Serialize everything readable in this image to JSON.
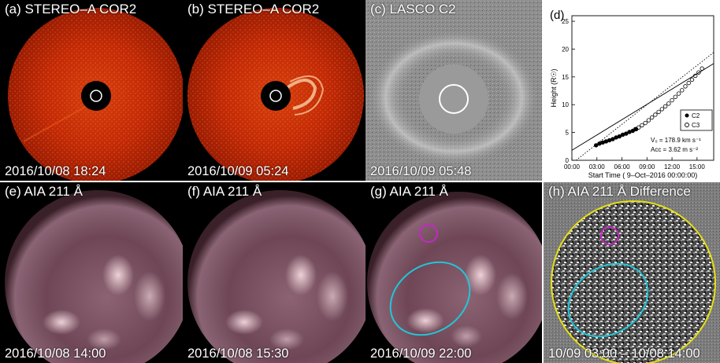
{
  "panels": {
    "a": {
      "label": "(a) STEREO–A COR2",
      "timestamp": "2016/10/08 18:24"
    },
    "b": {
      "label": "(b) STEREO–A COR2",
      "timestamp": "2016/10/09 05:24"
    },
    "c": {
      "label": "(c) LASCO C2",
      "timestamp": "2016/10/09 05:48"
    },
    "e": {
      "label": "(e) AIA 211 Å",
      "timestamp": "2016/10/08 14:00"
    },
    "f": {
      "label": "(f) AIA 211 Å",
      "timestamp": "2016/10/08 15:30"
    },
    "g": {
      "label": "(g) AIA 211 Å",
      "timestamp": "2016/10/09 22:00"
    },
    "h": {
      "label": "(h) AIA 211 Å Difference",
      "timestamp": "10/09 03:00 – 10/08 14:00"
    }
  },
  "colors": {
    "cor2_red": "#c42a06",
    "lasco_gray": "#8d8d8d",
    "aia_purple": "#7a5260",
    "magenta_circle": "#c428c4",
    "cyan_ellipse": "#22c6d6",
    "yellow_limb": "#e6e014"
  },
  "chart_data": {
    "type": "scatter",
    "panel_label": "(d)",
    "xlabel": "Start Time ( 9–Oct–2016 00:00:00)",
    "ylabel": "Height (R☉)",
    "xticks": [
      "00:00",
      "03:00",
      "06:00",
      "09:00",
      "12:00",
      "15:00"
    ],
    "xtick_values": [
      0,
      3,
      6,
      9,
      12,
      15
    ],
    "yticks": [
      "0",
      "5",
      "10",
      "15",
      "20",
      "25"
    ],
    "ytick_values": [
      0,
      5,
      10,
      15,
      20,
      25
    ],
    "xlim": [
      0,
      17
    ],
    "ylim": [
      0,
      26
    ],
    "legend": {
      "position": "right-middle",
      "entries": [
        "C2",
        "C3"
      ]
    },
    "annotation_v0": "V₀ =  178.9 km s⁻¹",
    "annotation_acc": "Acc =   3.62 m s⁻²",
    "series": [
      {
        "name": "C2",
        "marker": "filled-circle",
        "x": [
          2.9,
          3.3,
          3.7,
          4.1,
          4.5,
          4.9,
          5.3,
          5.7,
          6.1,
          6.5,
          6.9,
          7.3,
          7.7
        ],
        "y": [
          2.7,
          3.0,
          3.2,
          3.4,
          3.6,
          3.8,
          4.1,
          4.3,
          4.6,
          4.8,
          5.1,
          5.3,
          5.6
        ]
      },
      {
        "name": "C3",
        "marker": "open-circle",
        "x": [
          7.6,
          8.0,
          8.4,
          8.8,
          9.2,
          9.6,
          10.0,
          10.4,
          10.8,
          11.2,
          11.6,
          12.0,
          12.4,
          12.8,
          13.2,
          13.6,
          14.0,
          14.4,
          14.8,
          15.2,
          15.6
        ],
        "y": [
          5.6,
          5.9,
          6.3,
          6.7,
          7.2,
          7.7,
          8.2,
          8.7,
          9.2,
          9.7,
          10.2,
          10.8,
          11.4,
          12.0,
          12.6,
          13.3,
          13.9,
          14.5,
          15.2,
          15.8,
          16.5
        ]
      }
    ],
    "fits": [
      {
        "style": "solid",
        "x": [
          0,
          17
        ],
        "y": [
          1.8,
          17.4
        ]
      },
      {
        "style": "dotted",
        "x": [
          0.5,
          17
        ],
        "y": [
          0.0,
          19.4
        ]
      }
    ]
  }
}
